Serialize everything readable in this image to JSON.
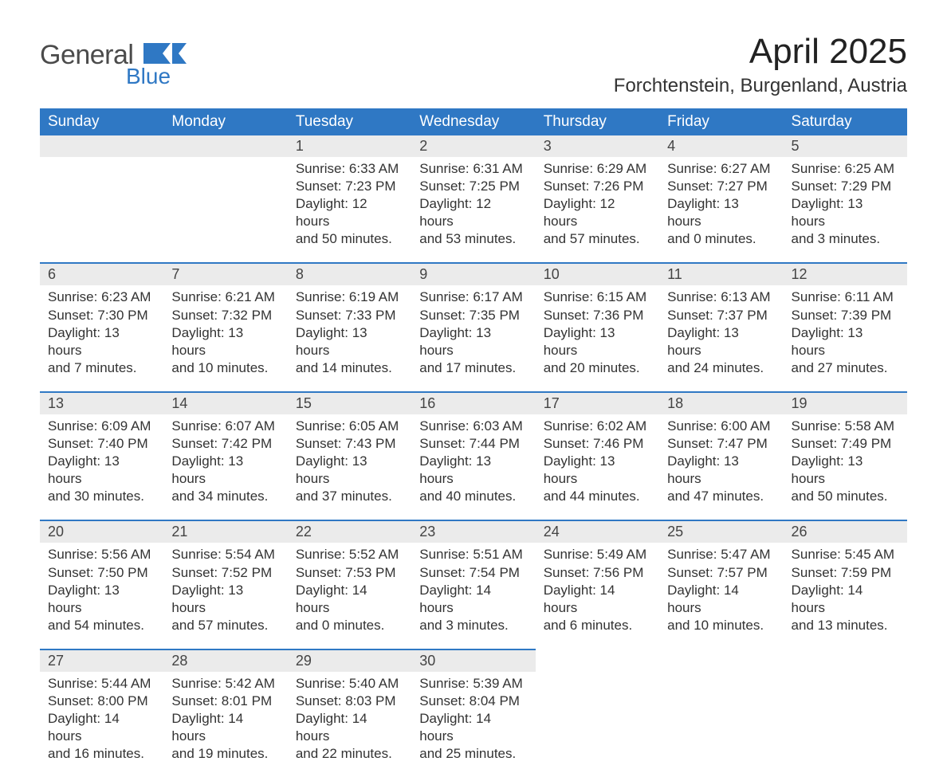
{
  "colors": {
    "header_bg": "#2f78c4",
    "header_text": "#ffffff",
    "daynum_bg": "#ebebeb",
    "daynum_text": "#444444",
    "body_text": "#333333",
    "row_divider": "#2f78c4",
    "logo_general": "#4b4b4b",
    "logo_blue": "#2f78c4",
    "page_bg": "#ffffff"
  },
  "typography": {
    "font_family": "Segoe UI, Arial, Helvetica, sans-serif",
    "month_title_size_pt": 33,
    "location_size_pt": 18,
    "dayheader_size_pt": 14,
    "daynum_size_pt": 13.5,
    "body_size_pt": 12.5
  },
  "logo": {
    "general": "General",
    "blue": "Blue"
  },
  "title": "April 2025",
  "location": "Forchtenstein, Burgenland, Austria",
  "day_headers": [
    "Sunday",
    "Monday",
    "Tuesday",
    "Wednesday",
    "Thursday",
    "Friday",
    "Saturday"
  ],
  "weeks": [
    [
      {
        "empty": true
      },
      {
        "empty": true
      },
      {
        "day": "1",
        "sunrise": "Sunrise: 6:33 AM",
        "sunset": "Sunset: 7:23 PM",
        "dl1": "Daylight: 12 hours",
        "dl2": "and 50 minutes."
      },
      {
        "day": "2",
        "sunrise": "Sunrise: 6:31 AM",
        "sunset": "Sunset: 7:25 PM",
        "dl1": "Daylight: 12 hours",
        "dl2": "and 53 minutes."
      },
      {
        "day": "3",
        "sunrise": "Sunrise: 6:29 AM",
        "sunset": "Sunset: 7:26 PM",
        "dl1": "Daylight: 12 hours",
        "dl2": "and 57 minutes."
      },
      {
        "day": "4",
        "sunrise": "Sunrise: 6:27 AM",
        "sunset": "Sunset: 7:27 PM",
        "dl1": "Daylight: 13 hours",
        "dl2": "and 0 minutes."
      },
      {
        "day": "5",
        "sunrise": "Sunrise: 6:25 AM",
        "sunset": "Sunset: 7:29 PM",
        "dl1": "Daylight: 13 hours",
        "dl2": "and 3 minutes."
      }
    ],
    [
      {
        "day": "6",
        "sunrise": "Sunrise: 6:23 AM",
        "sunset": "Sunset: 7:30 PM",
        "dl1": "Daylight: 13 hours",
        "dl2": "and 7 minutes."
      },
      {
        "day": "7",
        "sunrise": "Sunrise: 6:21 AM",
        "sunset": "Sunset: 7:32 PM",
        "dl1": "Daylight: 13 hours",
        "dl2": "and 10 minutes."
      },
      {
        "day": "8",
        "sunrise": "Sunrise: 6:19 AM",
        "sunset": "Sunset: 7:33 PM",
        "dl1": "Daylight: 13 hours",
        "dl2": "and 14 minutes."
      },
      {
        "day": "9",
        "sunrise": "Sunrise: 6:17 AM",
        "sunset": "Sunset: 7:35 PM",
        "dl1": "Daylight: 13 hours",
        "dl2": "and 17 minutes."
      },
      {
        "day": "10",
        "sunrise": "Sunrise: 6:15 AM",
        "sunset": "Sunset: 7:36 PM",
        "dl1": "Daylight: 13 hours",
        "dl2": "and 20 minutes."
      },
      {
        "day": "11",
        "sunrise": "Sunrise: 6:13 AM",
        "sunset": "Sunset: 7:37 PM",
        "dl1": "Daylight: 13 hours",
        "dl2": "and 24 minutes."
      },
      {
        "day": "12",
        "sunrise": "Sunrise: 6:11 AM",
        "sunset": "Sunset: 7:39 PM",
        "dl1": "Daylight: 13 hours",
        "dl2": "and 27 minutes."
      }
    ],
    [
      {
        "day": "13",
        "sunrise": "Sunrise: 6:09 AM",
        "sunset": "Sunset: 7:40 PM",
        "dl1": "Daylight: 13 hours",
        "dl2": "and 30 minutes."
      },
      {
        "day": "14",
        "sunrise": "Sunrise: 6:07 AM",
        "sunset": "Sunset: 7:42 PM",
        "dl1": "Daylight: 13 hours",
        "dl2": "and 34 minutes."
      },
      {
        "day": "15",
        "sunrise": "Sunrise: 6:05 AM",
        "sunset": "Sunset: 7:43 PM",
        "dl1": "Daylight: 13 hours",
        "dl2": "and 37 minutes."
      },
      {
        "day": "16",
        "sunrise": "Sunrise: 6:03 AM",
        "sunset": "Sunset: 7:44 PM",
        "dl1": "Daylight: 13 hours",
        "dl2": "and 40 minutes."
      },
      {
        "day": "17",
        "sunrise": "Sunrise: 6:02 AM",
        "sunset": "Sunset: 7:46 PM",
        "dl1": "Daylight: 13 hours",
        "dl2": "and 44 minutes."
      },
      {
        "day": "18",
        "sunrise": "Sunrise: 6:00 AM",
        "sunset": "Sunset: 7:47 PM",
        "dl1": "Daylight: 13 hours",
        "dl2": "and 47 minutes."
      },
      {
        "day": "19",
        "sunrise": "Sunrise: 5:58 AM",
        "sunset": "Sunset: 7:49 PM",
        "dl1": "Daylight: 13 hours",
        "dl2": "and 50 minutes."
      }
    ],
    [
      {
        "day": "20",
        "sunrise": "Sunrise: 5:56 AM",
        "sunset": "Sunset: 7:50 PM",
        "dl1": "Daylight: 13 hours",
        "dl2": "and 54 minutes."
      },
      {
        "day": "21",
        "sunrise": "Sunrise: 5:54 AM",
        "sunset": "Sunset: 7:52 PM",
        "dl1": "Daylight: 13 hours",
        "dl2": "and 57 minutes."
      },
      {
        "day": "22",
        "sunrise": "Sunrise: 5:52 AM",
        "sunset": "Sunset: 7:53 PM",
        "dl1": "Daylight: 14 hours",
        "dl2": "and 0 minutes."
      },
      {
        "day": "23",
        "sunrise": "Sunrise: 5:51 AM",
        "sunset": "Sunset: 7:54 PM",
        "dl1": "Daylight: 14 hours",
        "dl2": "and 3 minutes."
      },
      {
        "day": "24",
        "sunrise": "Sunrise: 5:49 AM",
        "sunset": "Sunset: 7:56 PM",
        "dl1": "Daylight: 14 hours",
        "dl2": "and 6 minutes."
      },
      {
        "day": "25",
        "sunrise": "Sunrise: 5:47 AM",
        "sunset": "Sunset: 7:57 PM",
        "dl1": "Daylight: 14 hours",
        "dl2": "and 10 minutes."
      },
      {
        "day": "26",
        "sunrise": "Sunrise: 5:45 AM",
        "sunset": "Sunset: 7:59 PM",
        "dl1": "Daylight: 14 hours",
        "dl2": "and 13 minutes."
      }
    ],
    [
      {
        "day": "27",
        "sunrise": "Sunrise: 5:44 AM",
        "sunset": "Sunset: 8:00 PM",
        "dl1": "Daylight: 14 hours",
        "dl2": "and 16 minutes."
      },
      {
        "day": "28",
        "sunrise": "Sunrise: 5:42 AM",
        "sunset": "Sunset: 8:01 PM",
        "dl1": "Daylight: 14 hours",
        "dl2": "and 19 minutes."
      },
      {
        "day": "29",
        "sunrise": "Sunrise: 5:40 AM",
        "sunset": "Sunset: 8:03 PM",
        "dl1": "Daylight: 14 hours",
        "dl2": "and 22 minutes."
      },
      {
        "day": "30",
        "sunrise": "Sunrise: 5:39 AM",
        "sunset": "Sunset: 8:04 PM",
        "dl1": "Daylight: 14 hours",
        "dl2": "and 25 minutes."
      },
      {
        "empty": true
      },
      {
        "empty": true
      },
      {
        "empty": true
      }
    ]
  ]
}
